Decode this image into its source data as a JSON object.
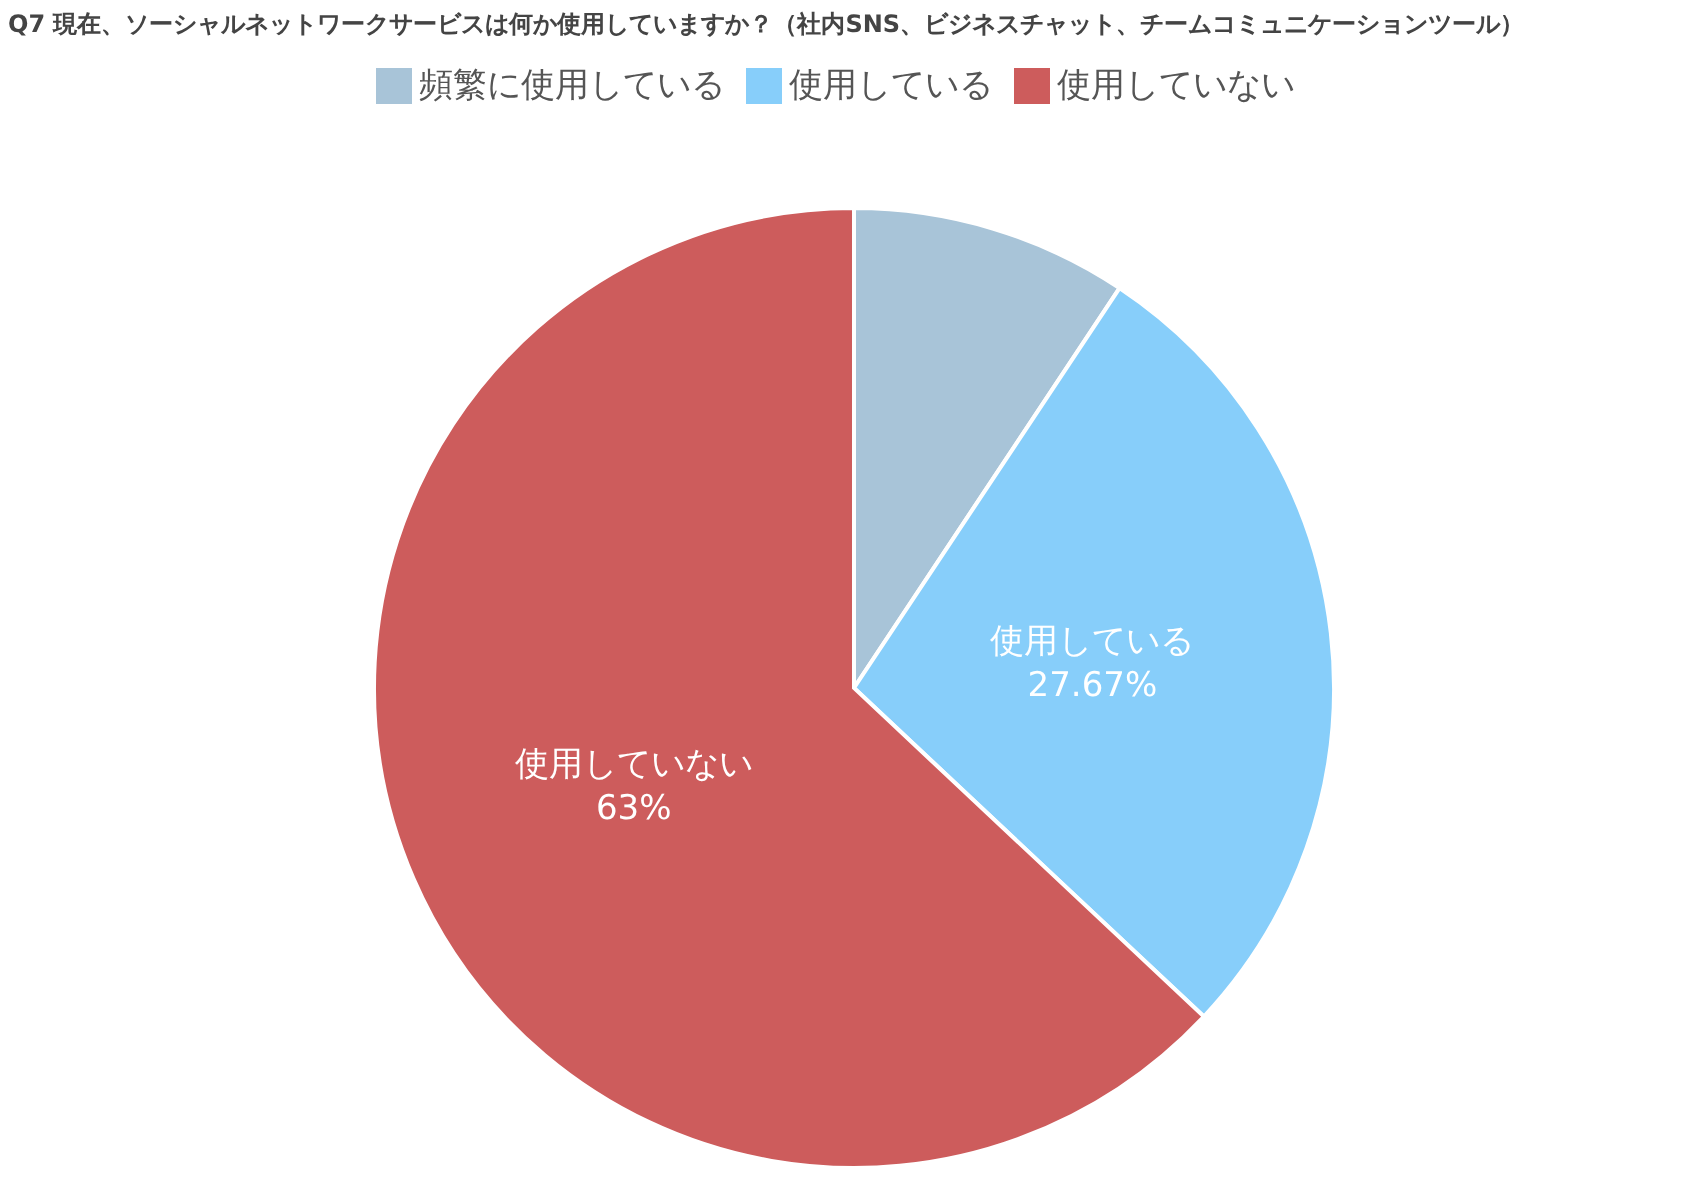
{
  "chart_data": {
    "type": "pie",
    "title": "Q7 現在、ソーシャルネットワークサービスは何か使用していますか？（社内SNS、ビジネスチャット、チームコミュニケーションツール）",
    "categories": [
      "頻繁に使用している",
      "使用している",
      "使用していない"
    ],
    "values": [
      9.33,
      27.67,
      63
    ],
    "colors": [
      "#a8c4d8",
      "#87cefa",
      "#cd5c5c"
    ],
    "value_labels": [
      null,
      "27.67%",
      "63%"
    ],
    "legend": "top"
  }
}
